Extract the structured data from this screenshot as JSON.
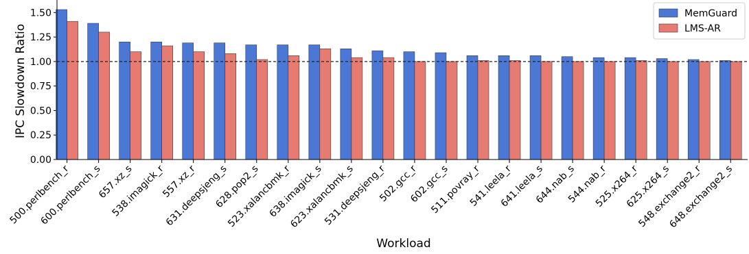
{
  "chart_data": {
    "type": "bar",
    "xlabel": "Workload",
    "ylabel": "IPC Slowdown Ratio",
    "ylim": [
      0,
      1.6
    ],
    "yticks": [
      "0.00",
      "0.25",
      "0.50",
      "0.75",
      "1.00",
      "1.25",
      "1.50"
    ],
    "reference_line": 1.0,
    "grid": false,
    "legend_position": "top-right",
    "categories": [
      "500.perlbench_r",
      "600.perlbench_s",
      "657.xz_s",
      "538.imagick_r",
      "557.xz_r",
      "631.deepsjeng_s",
      "628.pop2_s",
      "523.xalancbmk_r",
      "638.imagick_s",
      "623.xalancbmk_s",
      "531.deepsjeng_r",
      "502.gcc_r",
      "602.gcc_s",
      "511.povray_r",
      "541.leela_r",
      "641.leela_s",
      "644.nab_s",
      "544.nab_r",
      "525.x264_r",
      "625.x264_s",
      "548.exchange2_r",
      "648.exchange2_s"
    ],
    "series": [
      {
        "name": "MemGuard",
        "color": "#4a78d4",
        "values": [
          1.53,
          1.39,
          1.2,
          1.2,
          1.19,
          1.19,
          1.17,
          1.17,
          1.17,
          1.13,
          1.11,
          1.1,
          1.09,
          1.06,
          1.06,
          1.06,
          1.05,
          1.04,
          1.04,
          1.03,
          1.02,
          1.01
        ]
      },
      {
        "name": "LMS-AR",
        "color": "#e67b72",
        "values": [
          1.41,
          1.3,
          1.1,
          1.16,
          1.1,
          1.08,
          1.02,
          1.06,
          1.13,
          1.04,
          1.04,
          1.0,
          1.0,
          1.01,
          1.01,
          1.0,
          1.0,
          1.0,
          1.01,
          1.0,
          1.0,
          1.0
        ]
      }
    ]
  }
}
